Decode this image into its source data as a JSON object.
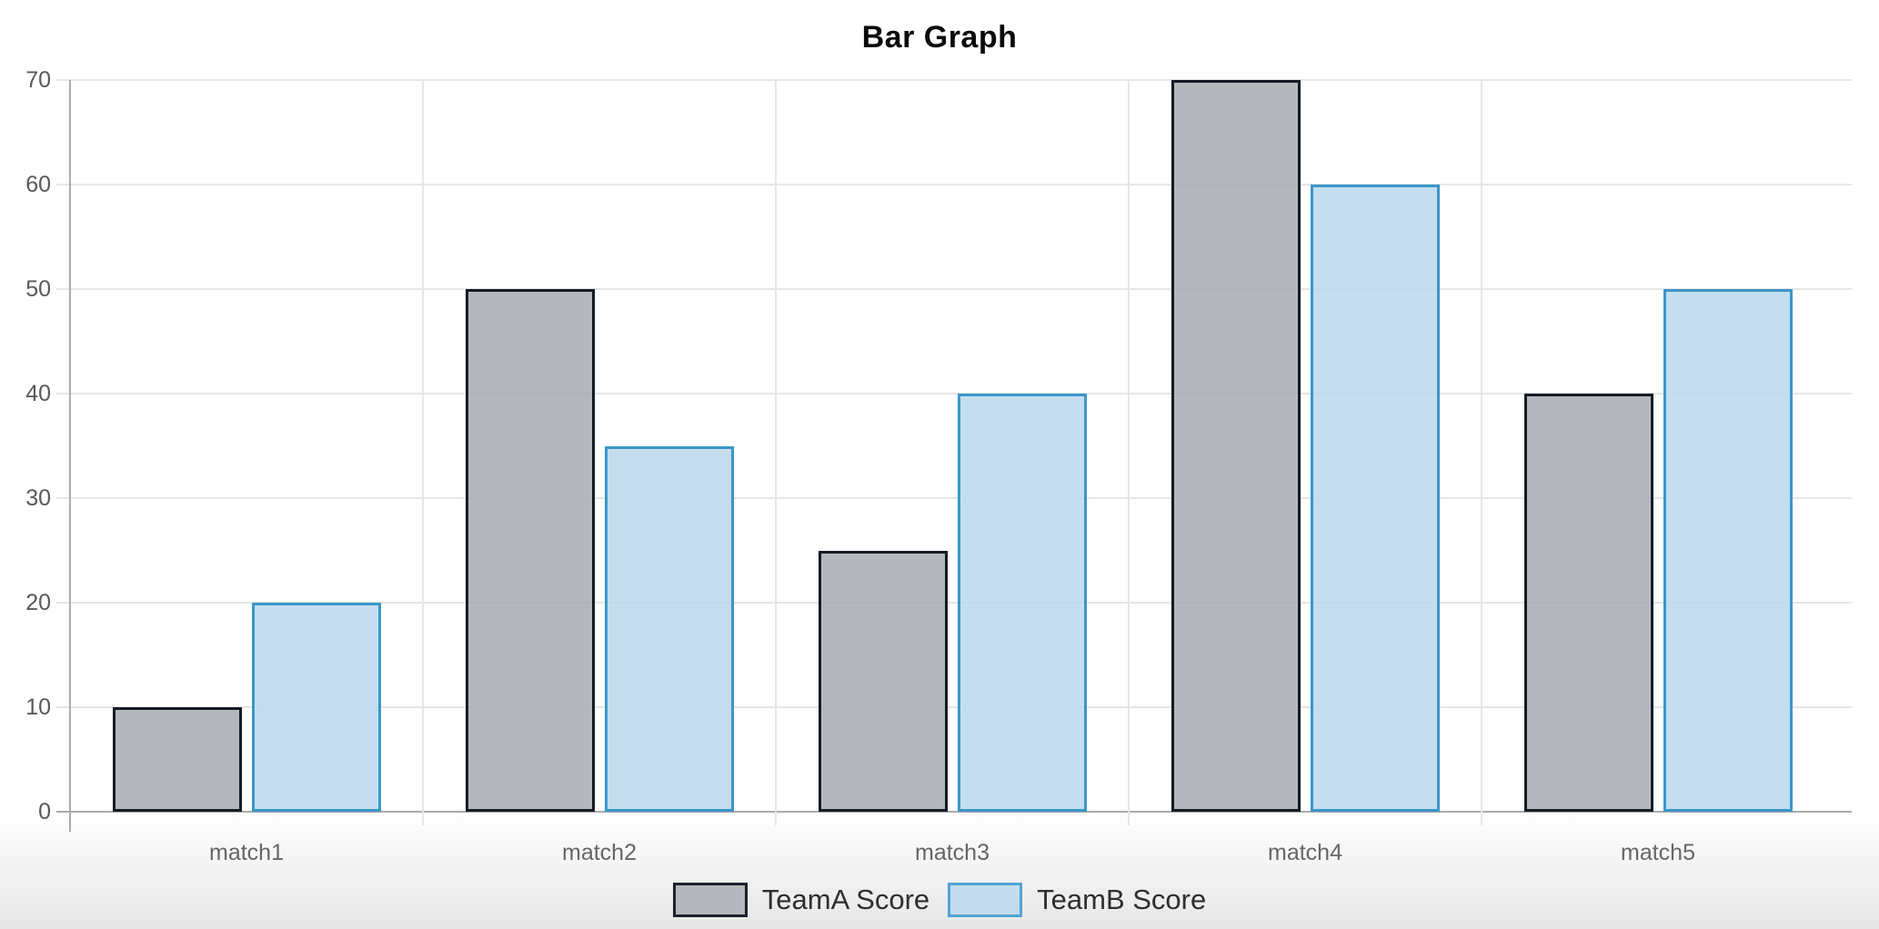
{
  "chart_data": {
    "type": "bar",
    "title": "Bar Graph",
    "categories": [
      "match1",
      "match2",
      "match3",
      "match4",
      "match5"
    ],
    "series": [
      {
        "name": "TeamA Score",
        "values": [
          10,
          50,
          25,
          70,
          40
        ],
        "fill": "rgba(167,172,177,0.85)",
        "border": "#141c26",
        "legend_fill": "#b4b8bc",
        "legend_border": "#1b222b"
      },
      {
        "name": "TeamB Score",
        "values": [
          20,
          35,
          40,
          60,
          50
        ],
        "fill": "rgba(186,216,237,0.85)",
        "border": "#3b97c8",
        "legend_fill": "#c3ddee",
        "legend_border": "#53a3d3"
      }
    ],
    "y_ticks": [
      0,
      10,
      20,
      30,
      40,
      50,
      60,
      70
    ],
    "ylim": [
      0,
      70
    ],
    "xlabel": "",
    "ylabel": "",
    "grid": true,
    "legend_position": "bottom",
    "colors": {
      "gridline": "#e6e6e6",
      "axis_line": "#ababab",
      "tick_text": "#595959",
      "x_label_text": "#666666",
      "legend_text": "#2e2e2e",
      "title_text": "#0b0b0b",
      "page_bottom_gradient": "#e7e7e7"
    }
  }
}
